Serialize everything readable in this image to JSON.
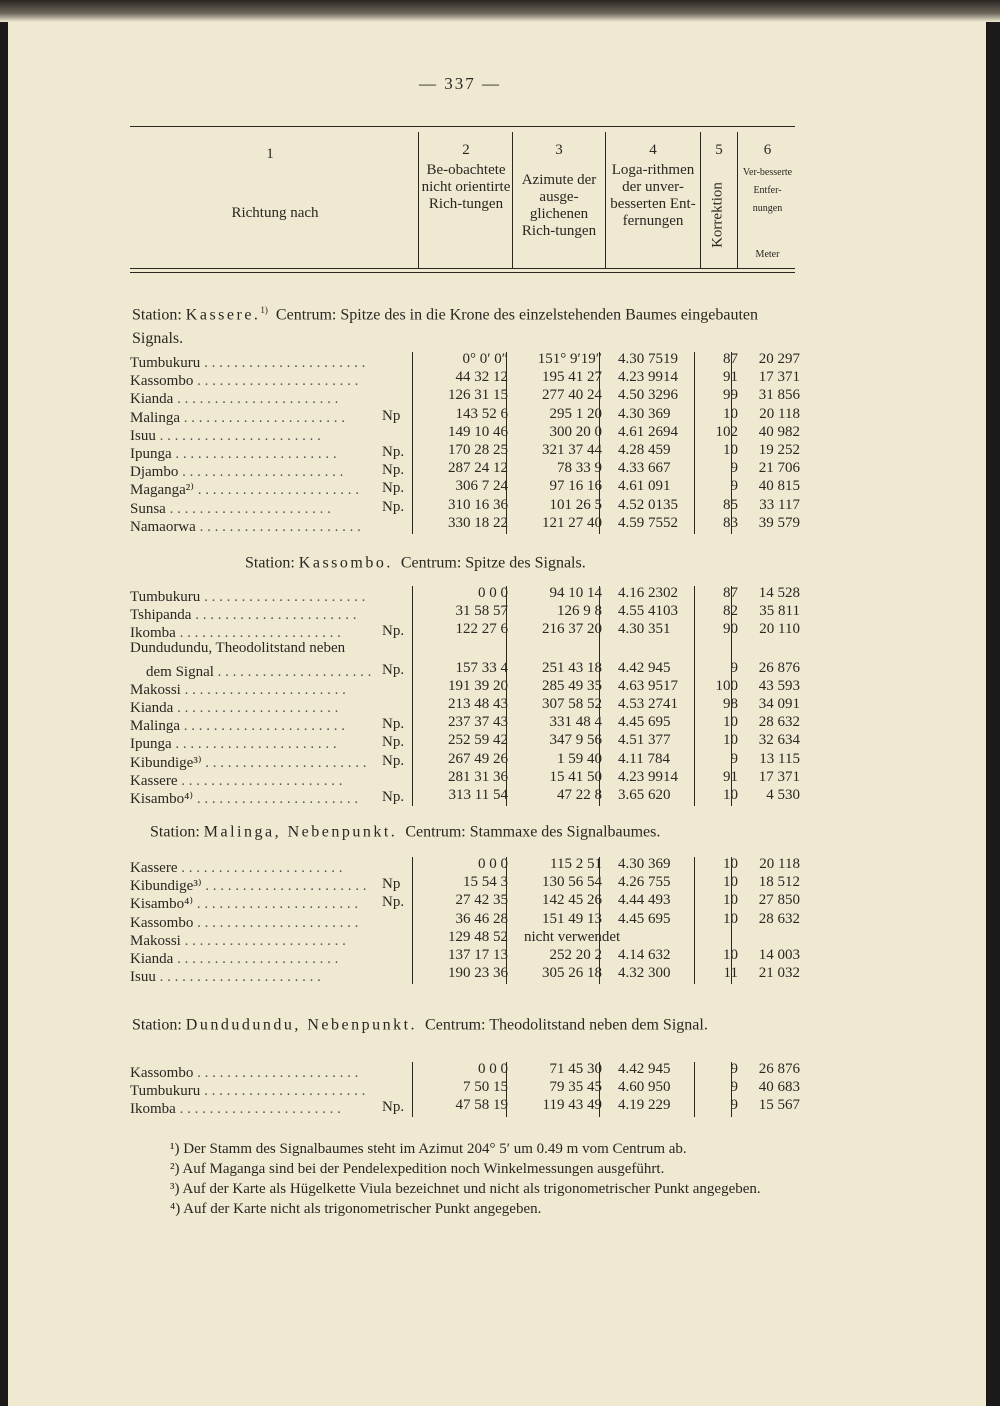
{
  "page_number": "— 337 —",
  "columns": [
    {
      "num": "1",
      "label": "Richtung nach"
    },
    {
      "num": "2",
      "label": "Be-obachtete nicht orientirte Rich-tungen"
    },
    {
      "num": "3",
      "label": "Azimute der ausge-glichenen Rich-tungen"
    },
    {
      "num": "4",
      "label": "Loga-rithmen der unver-besserten Ent-fernungen"
    },
    {
      "num": "5",
      "label": "Korrektion"
    },
    {
      "num": "6",
      "label": "Ver-besserte Entfer-nungen",
      "unit": "Meter"
    }
  ],
  "sections": [
    {
      "station": "Station:",
      "name": "Kassere.",
      "note": "1)",
      "centrum": "Centrum: Spitze des in die Krone des einzelstehenden Baumes eingebauten Signals.",
      "rows": [
        [
          "Tumbukuru",
          "",
          "0° 0′ 0″",
          "151° 9′19″",
          "4.30 7519",
          "87",
          "20 297"
        ],
        [
          "Kassombo",
          "",
          "44 32 12",
          "195 41 27",
          "4.23 9914",
          "91",
          "17 371"
        ],
        [
          "Kianda",
          "",
          "126 31 15",
          "277 40 24",
          "4.50 3296",
          "99",
          "31 856"
        ],
        [
          "Malinga",
          "Np",
          "143 52 6",
          "295 1 20",
          "4.30 369",
          "10",
          "20 118"
        ],
        [
          "Isuu",
          "",
          "149 10 46",
          "300 20 0",
          "4.61 2694",
          "102",
          "40 982"
        ],
        [
          "Ipunga",
          "Np.",
          "170 28 25",
          "321 37 44",
          "4.28 459",
          "10",
          "19 252"
        ],
        [
          "Djambo",
          "Np.",
          "287 24 12",
          "78 33 9",
          "4.33 667",
          "9",
          "21 706"
        ],
        [
          "Maganga²⁾",
          "Np.",
          "306 7 24",
          "97 16 16",
          "4.61 091",
          "9",
          "40 815"
        ],
        [
          "Sunsa",
          "Np.",
          "310 16 36",
          "101 26 5",
          "4.52 0135",
          "85",
          "33 117"
        ],
        [
          "Namaorwa",
          "",
          "330 18 22",
          "121 27 40",
          "4.59 7552",
          "83",
          "39 579"
        ]
      ]
    },
    {
      "station": "Station:",
      "name": "Kassombo.",
      "note": "",
      "centrum": "Centrum: Spitze des Signals.",
      "rows": [
        [
          "Tumbukuru",
          "",
          "0 0 0",
          "94 10 14",
          "4.16 2302",
          "87",
          "14 528"
        ],
        [
          "Tshipanda",
          "",
          "31 58 57",
          "126 9 8",
          "4.55 4103",
          "82",
          "35 811"
        ],
        [
          "Ikomba",
          "Np.",
          "122 27 6",
          "216 37 20",
          "4.30 351",
          "90",
          "20 110"
        ],
        [
          "Dundudundu, Theodolitstand neben dem Signal",
          "Np.",
          "157 33 4",
          "251 43 18",
          "4.42 945",
          "9",
          "26 876"
        ],
        [
          "Makossi",
          "",
          "191 39 20",
          "285 49 35",
          "4.63 9517",
          "100",
          "43 593"
        ],
        [
          "Kianda",
          "",
          "213 48 43",
          "307 58 52",
          "4.53 2741",
          "98",
          "34 091"
        ],
        [
          "Malinga",
          "Np.",
          "237 37 43",
          "331 48 4",
          "4.45 695",
          "10",
          "28 632"
        ],
        [
          "Ipunga",
          "Np.",
          "252 59 42",
          "347 9 56",
          "4.51 377",
          "10",
          "32 634"
        ],
        [
          "Kibundige³⁾",
          "Np.",
          "267 49 26",
          "1 59 40",
          "4.11 784",
          "9",
          "13 115"
        ],
        [
          "Kassere",
          "",
          "281 31 36",
          "15 41 50",
          "4.23 9914",
          "91",
          "17 371"
        ],
        [
          "Kisambo⁴⁾",
          "Np.",
          "313 11 54",
          "47 22 8",
          "3.65 620",
          "10",
          "4 530"
        ]
      ]
    },
    {
      "station": "Station:",
      "name": "Malinga, Nebenpunkt.",
      "note": "",
      "centrum": "Centrum: Stammaxe des Signalbaumes.",
      "rows": [
        [
          "Kassere",
          "",
          "0 0 0",
          "115 2 51",
          "4.30 369",
          "10",
          "20 118"
        ],
        [
          "Kibundige³⁾",
          "Np",
          "15 54 3",
          "130 56 54",
          "4.26 755",
          "10",
          "18 512"
        ],
        [
          "Kisambo⁴⁾",
          "Np.",
          "27 42 35",
          "142 45 26",
          "4.44 493",
          "10",
          "27 850"
        ],
        [
          "Kassombo",
          "",
          "36 46 28",
          "151 49 13",
          "4.45 695",
          "10",
          "28 632"
        ],
        [
          "Makossi",
          "",
          "129 48 52",
          "nicht verwendet",
          "",
          "",
          ""
        ],
        [
          "Kianda",
          "",
          "137 17 13",
          "252 20 2",
          "4.14 632",
          "10",
          "14 003"
        ],
        [
          "Isuu",
          "",
          "190 23 36",
          "305 26 18",
          "4.32 300",
          "11",
          "21 032"
        ]
      ]
    },
    {
      "station": "Station:",
      "name": "Dundudundu, Nebenpunkt.",
      "note": "",
      "centrum": "Centrum: Theodolitstand neben dem Signal.",
      "rows": [
        [
          "Kassombo",
          "",
          "0 0 0",
          "71 45 30",
          "4.42 945",
          "9",
          "26 876"
        ],
        [
          "Tumbukuru",
          "",
          "7 50 15",
          "79 35 45",
          "4.60 950",
          "9",
          "40 683"
        ],
        [
          "Ikomba",
          "Np.",
          "47 58 19",
          "119 43 49",
          "4.19 229",
          "9",
          "15 567"
        ]
      ]
    }
  ],
  "footnotes": [
    "¹) Der Stamm des Signalbaumes steht im Azimut 204° 5′ um 0.49 m vom Centrum ab.",
    "²) Auf Maganga sind bei der Pendelexpedition noch Winkelmessungen ausgeführt.",
    "³) Auf der Karte als Hügelkette Viula bezeichnet und nicht als trigonometrischer Punkt angegeben.",
    "⁴) Auf der Karte nicht als trigonometrischer Punkt angegeben."
  ]
}
